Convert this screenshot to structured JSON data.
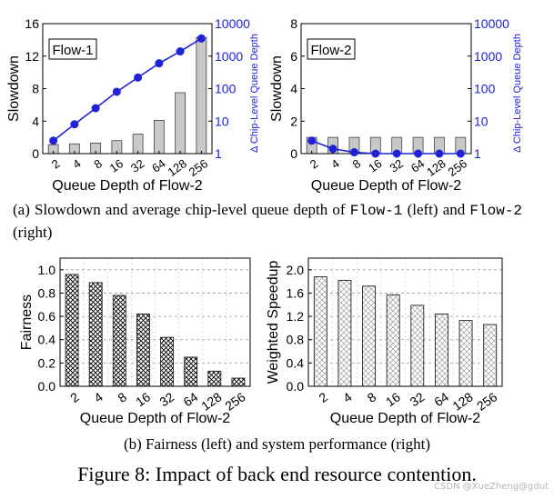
{
  "chart_data": [
    {
      "id": "a-left",
      "type": "bar+line",
      "panel_label": "Flow-1",
      "categories": [
        "2",
        "4",
        "8",
        "16",
        "32",
        "64",
        "128",
        "256"
      ],
      "bars": {
        "axis": "left",
        "name": "Slowdown",
        "values": [
          1.1,
          1.2,
          1.3,
          1.6,
          2.4,
          4.1,
          7.5,
          14.3
        ]
      },
      "line": {
        "axis": "right",
        "name": "Δ Chip-Level Queue Depth",
        "values": [
          2.5,
          8,
          25,
          80,
          220,
          600,
          1400,
          3500
        ]
      },
      "xlabel": "Queue Depth of Flow-2",
      "ylabel": "Slowdown",
      "y2label": "Δ Chip-Level Queue Depth",
      "ylim": [
        0,
        16
      ],
      "yticks": [
        "0",
        "4",
        "8",
        "12",
        "16"
      ],
      "y2scale": "log",
      "y2ticks": [
        "1",
        "10",
        "100",
        "1000",
        "10000"
      ],
      "colors": {
        "bar_fill": "#c8c8c8",
        "line": "#1f22d8",
        "axis2": "#1f22d8"
      }
    },
    {
      "id": "a-right",
      "type": "bar+line",
      "panel_label": "Flow-2",
      "categories": [
        "2",
        "4",
        "8",
        "16",
        "32",
        "64",
        "128",
        "256"
      ],
      "bars": {
        "axis": "left",
        "name": "Slowdown",
        "values": [
          1,
          1,
          1,
          1,
          1,
          1,
          1,
          1
        ]
      },
      "line": {
        "axis": "right",
        "name": "Δ Chip-Level Queue Depth",
        "values": [
          2.5,
          1.4,
          1.1,
          1.0,
          1.0,
          1.0,
          1.0,
          1.0
        ]
      },
      "xlabel": "Queue Depth of Flow-2",
      "ylabel": "Slowdown",
      "y2label": "Δ Chip-Level Queue Depth",
      "ylim": [
        0,
        8
      ],
      "yticks": [
        "0",
        "2",
        "4",
        "6",
        "8"
      ],
      "y2scale": "log",
      "y2ticks": [
        "1",
        "10",
        "100",
        "1000",
        "10000"
      ],
      "colors": {
        "bar_fill": "#c8c8c8",
        "line": "#1f22d8",
        "axis2": "#1f22d8"
      }
    },
    {
      "id": "b-left",
      "type": "bar",
      "categories": [
        "2",
        "4",
        "8",
        "16",
        "32",
        "64",
        "128",
        "256"
      ],
      "values": [
        0.96,
        0.89,
        0.78,
        0.62,
        0.42,
        0.25,
        0.13,
        0.07
      ],
      "xlabel": "Queue Depth of Flow-2",
      "ylabel": "Fairness",
      "ylim": [
        0,
        1.1
      ],
      "yticks": [
        "0.0",
        "0.2",
        "0.4",
        "0.6",
        "0.8",
        "1.0"
      ],
      "grid": "horizontal-dashed",
      "pattern": "crosshatch-dense"
    },
    {
      "id": "b-right",
      "type": "bar",
      "categories": [
        "2",
        "4",
        "8",
        "16",
        "32",
        "64",
        "128",
        "256"
      ],
      "values": [
        1.88,
        1.82,
        1.72,
        1.57,
        1.39,
        1.24,
        1.13,
        1.06
      ],
      "xlabel": "Queue Depth of Flow-2",
      "ylabel": "Weighted Speedup",
      "ylim": [
        0,
        2.2
      ],
      "yticks": [
        "0.0",
        "0.4",
        "0.8",
        "1.2",
        "1.6",
        "2.0"
      ],
      "grid": "horizontal-dashed",
      "pattern": "crosshatch-light"
    }
  ],
  "captions": {
    "a_part1": "(a) Slowdown and average chip-level queue depth of",
    "a_flow1": "Flow-1",
    "a_part2": "(left) and",
    "a_flow2": "Flow-2",
    "a_part3": "(right)",
    "b": "(b) Fairness (left) and system performance (right)",
    "figure": "Figure 8: Impact of back end resource contention."
  },
  "watermark": "CSDN @XueZheng@gdut"
}
